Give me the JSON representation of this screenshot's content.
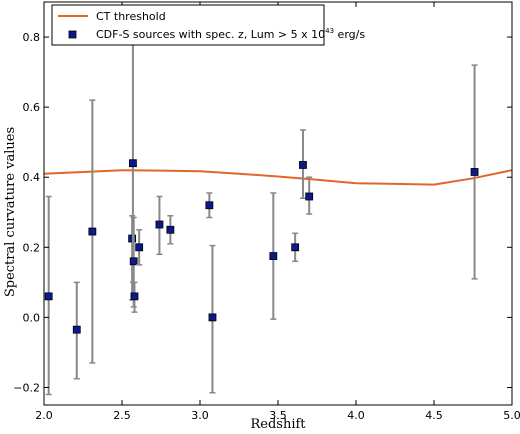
{
  "chart_data": {
    "type": "scatter",
    "title": "",
    "xlabel": "Redshift",
    "ylabel": "Spectral curvature values",
    "xlim": [
      2.0,
      5.0
    ],
    "ylim": [
      -0.25,
      0.9
    ],
    "xticks": [
      "2.0",
      "2.5",
      "3.0",
      "3.5",
      "4.0",
      "4.5",
      "5.0"
    ],
    "yticks": [
      "−0.2",
      "0.0",
      "0.2",
      "0.4",
      "0.6",
      "0.8"
    ],
    "legend_position": "top-left",
    "series": [
      {
        "name": "CT threshold",
        "kind": "line",
        "color": "#e2662a",
        "x": [
          2.0,
          2.25,
          2.5,
          2.75,
          3.0,
          3.25,
          3.5,
          3.75,
          4.0,
          4.25,
          4.5,
          4.75,
          5.0
        ],
        "y": [
          0.41,
          0.415,
          0.42,
          0.419,
          0.417,
          0.41,
          0.402,
          0.393,
          0.383,
          0.381,
          0.379,
          0.397,
          0.42
        ]
      },
      {
        "name": "CDF-S sources with spec. z, Lum > 5 x 10",
        "name_superscript": "43",
        "name_suffix": " erg/s",
        "kind": "scatter",
        "marker_color": "#0a1a8c",
        "errorbar_color": "#888888",
        "points": [
          {
            "x": 2.03,
            "y": 0.06,
            "lo": -0.22,
            "hi": 0.345
          },
          {
            "x": 2.21,
            "y": -0.035,
            "lo": -0.175,
            "hi": 0.1
          },
          {
            "x": 2.31,
            "y": 0.245,
            "lo": -0.13,
            "hi": 0.62
          },
          {
            "x": 2.565,
            "y": 0.225,
            "lo": 0.05,
            "hi": 0.29
          },
          {
            "x": 2.57,
            "y": 0.44,
            "lo": 0.1,
            "hi": 0.785
          },
          {
            "x": 2.575,
            "y": 0.16,
            "lo": 0.03,
            "hi": 0.285
          },
          {
            "x": 2.58,
            "y": 0.06,
            "lo": 0.015,
            "hi": 0.1
          },
          {
            "x": 2.61,
            "y": 0.2,
            "lo": 0.15,
            "hi": 0.25
          },
          {
            "x": 2.74,
            "y": 0.265,
            "lo": 0.18,
            "hi": 0.345
          },
          {
            "x": 2.81,
            "y": 0.25,
            "lo": 0.21,
            "hi": 0.29
          },
          {
            "x": 3.06,
            "y": 0.32,
            "lo": 0.285,
            "hi": 0.355
          },
          {
            "x": 3.08,
            "y": 0.0,
            "lo": -0.215,
            "hi": 0.205
          },
          {
            "x": 3.47,
            "y": 0.175,
            "lo": -0.005,
            "hi": 0.355
          },
          {
            "x": 3.61,
            "y": 0.2,
            "lo": 0.16,
            "hi": 0.24
          },
          {
            "x": 3.66,
            "y": 0.435,
            "lo": 0.34,
            "hi": 0.535
          },
          {
            "x": 3.7,
            "y": 0.345,
            "lo": 0.295,
            "hi": 0.4
          },
          {
            "x": 4.76,
            "y": 0.415,
            "lo": 0.11,
            "hi": 0.72
          }
        ]
      }
    ]
  }
}
